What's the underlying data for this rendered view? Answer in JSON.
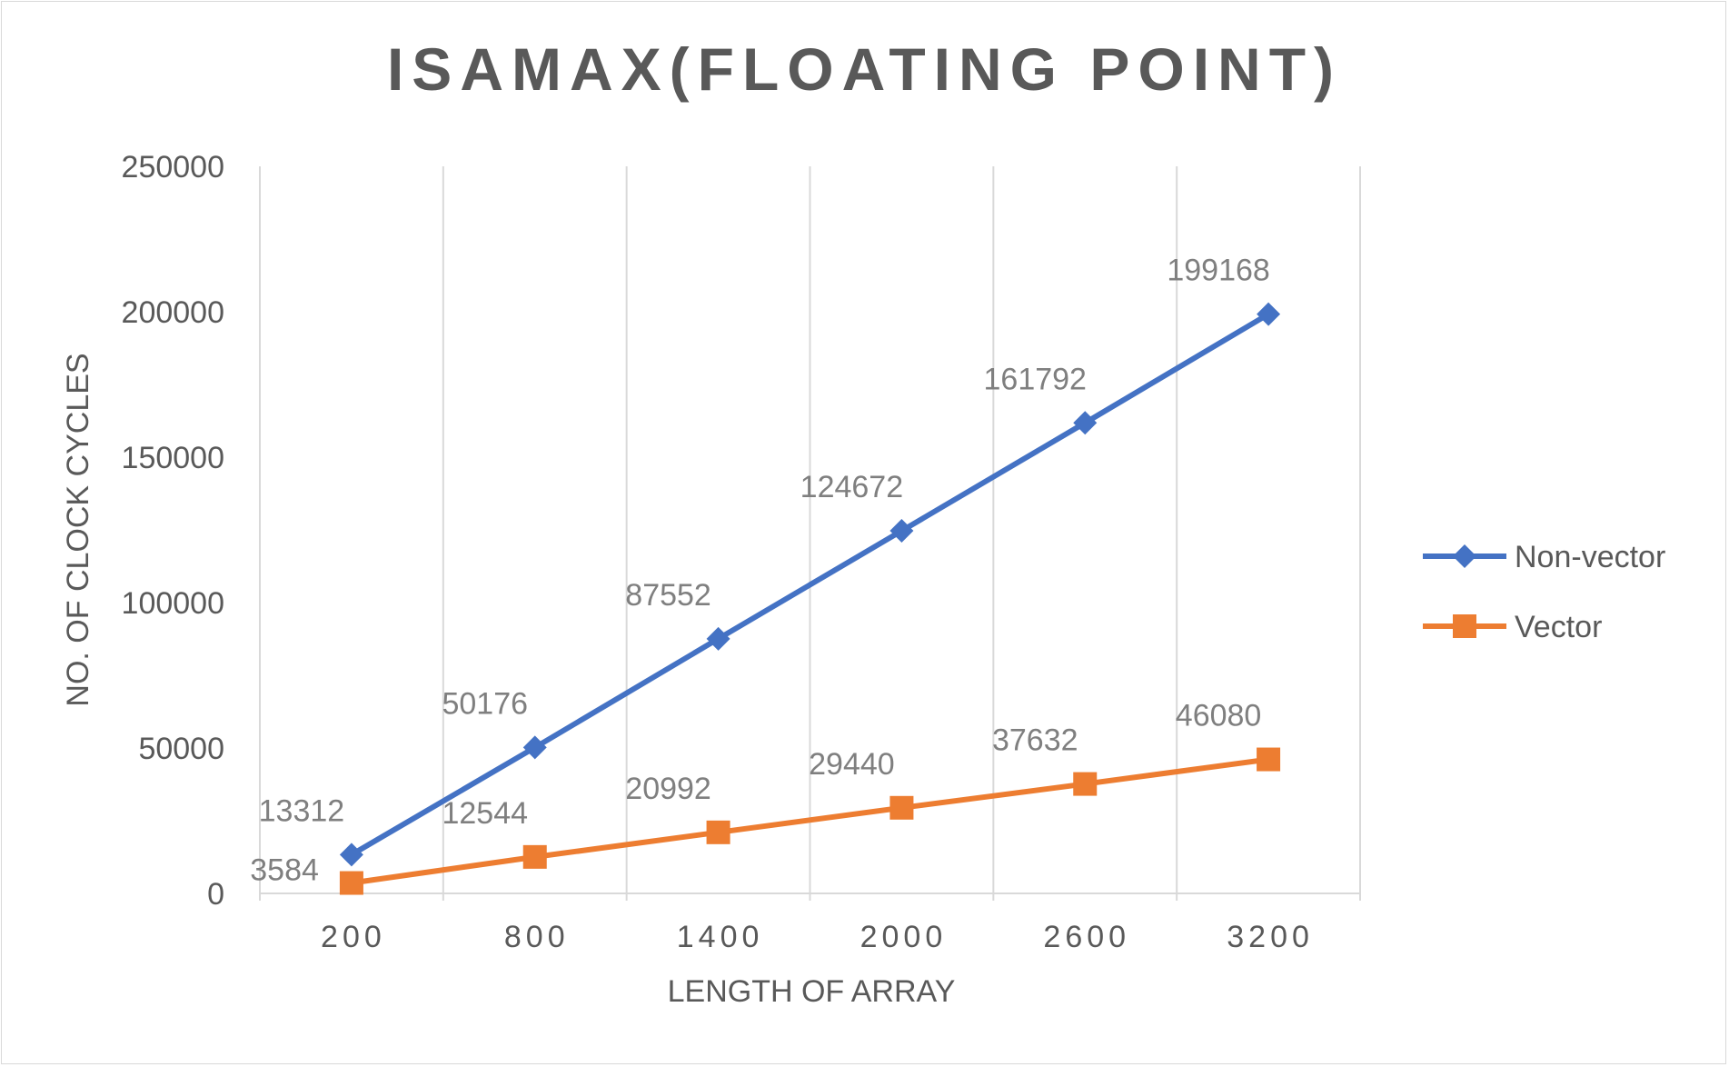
{
  "chart_data": {
    "type": "line",
    "title": "ISAMAX(FLOATING POINT)",
    "xlabel": "LENGTH OF ARRAY",
    "ylabel": "NO. OF CLOCK CYCLES",
    "categories": [
      "200",
      "800",
      "1400",
      "2000",
      "2600",
      "3200"
    ],
    "ylim": [
      0,
      250000
    ],
    "yticks": [
      "0",
      "50000",
      "100000",
      "150000",
      "200000",
      "250000"
    ],
    "grid": "vertical",
    "legend": "right",
    "series": [
      {
        "name": "Non-vector",
        "values": [
          13312,
          50176,
          87552,
          124672,
          161792,
          199168
        ],
        "labels": [
          "13312",
          "50176",
          "87552",
          "124672",
          "161792",
          "199168"
        ],
        "color": "#4472c4",
        "marker": "diamond"
      },
      {
        "name": "Vector",
        "values": [
          3584,
          12544,
          20992,
          29440,
          37632,
          46080
        ],
        "labels": [
          "3584",
          "12544",
          "20992",
          "29440",
          "37632",
          "46080"
        ],
        "color": "#ed7d31",
        "marker": "square"
      }
    ]
  }
}
